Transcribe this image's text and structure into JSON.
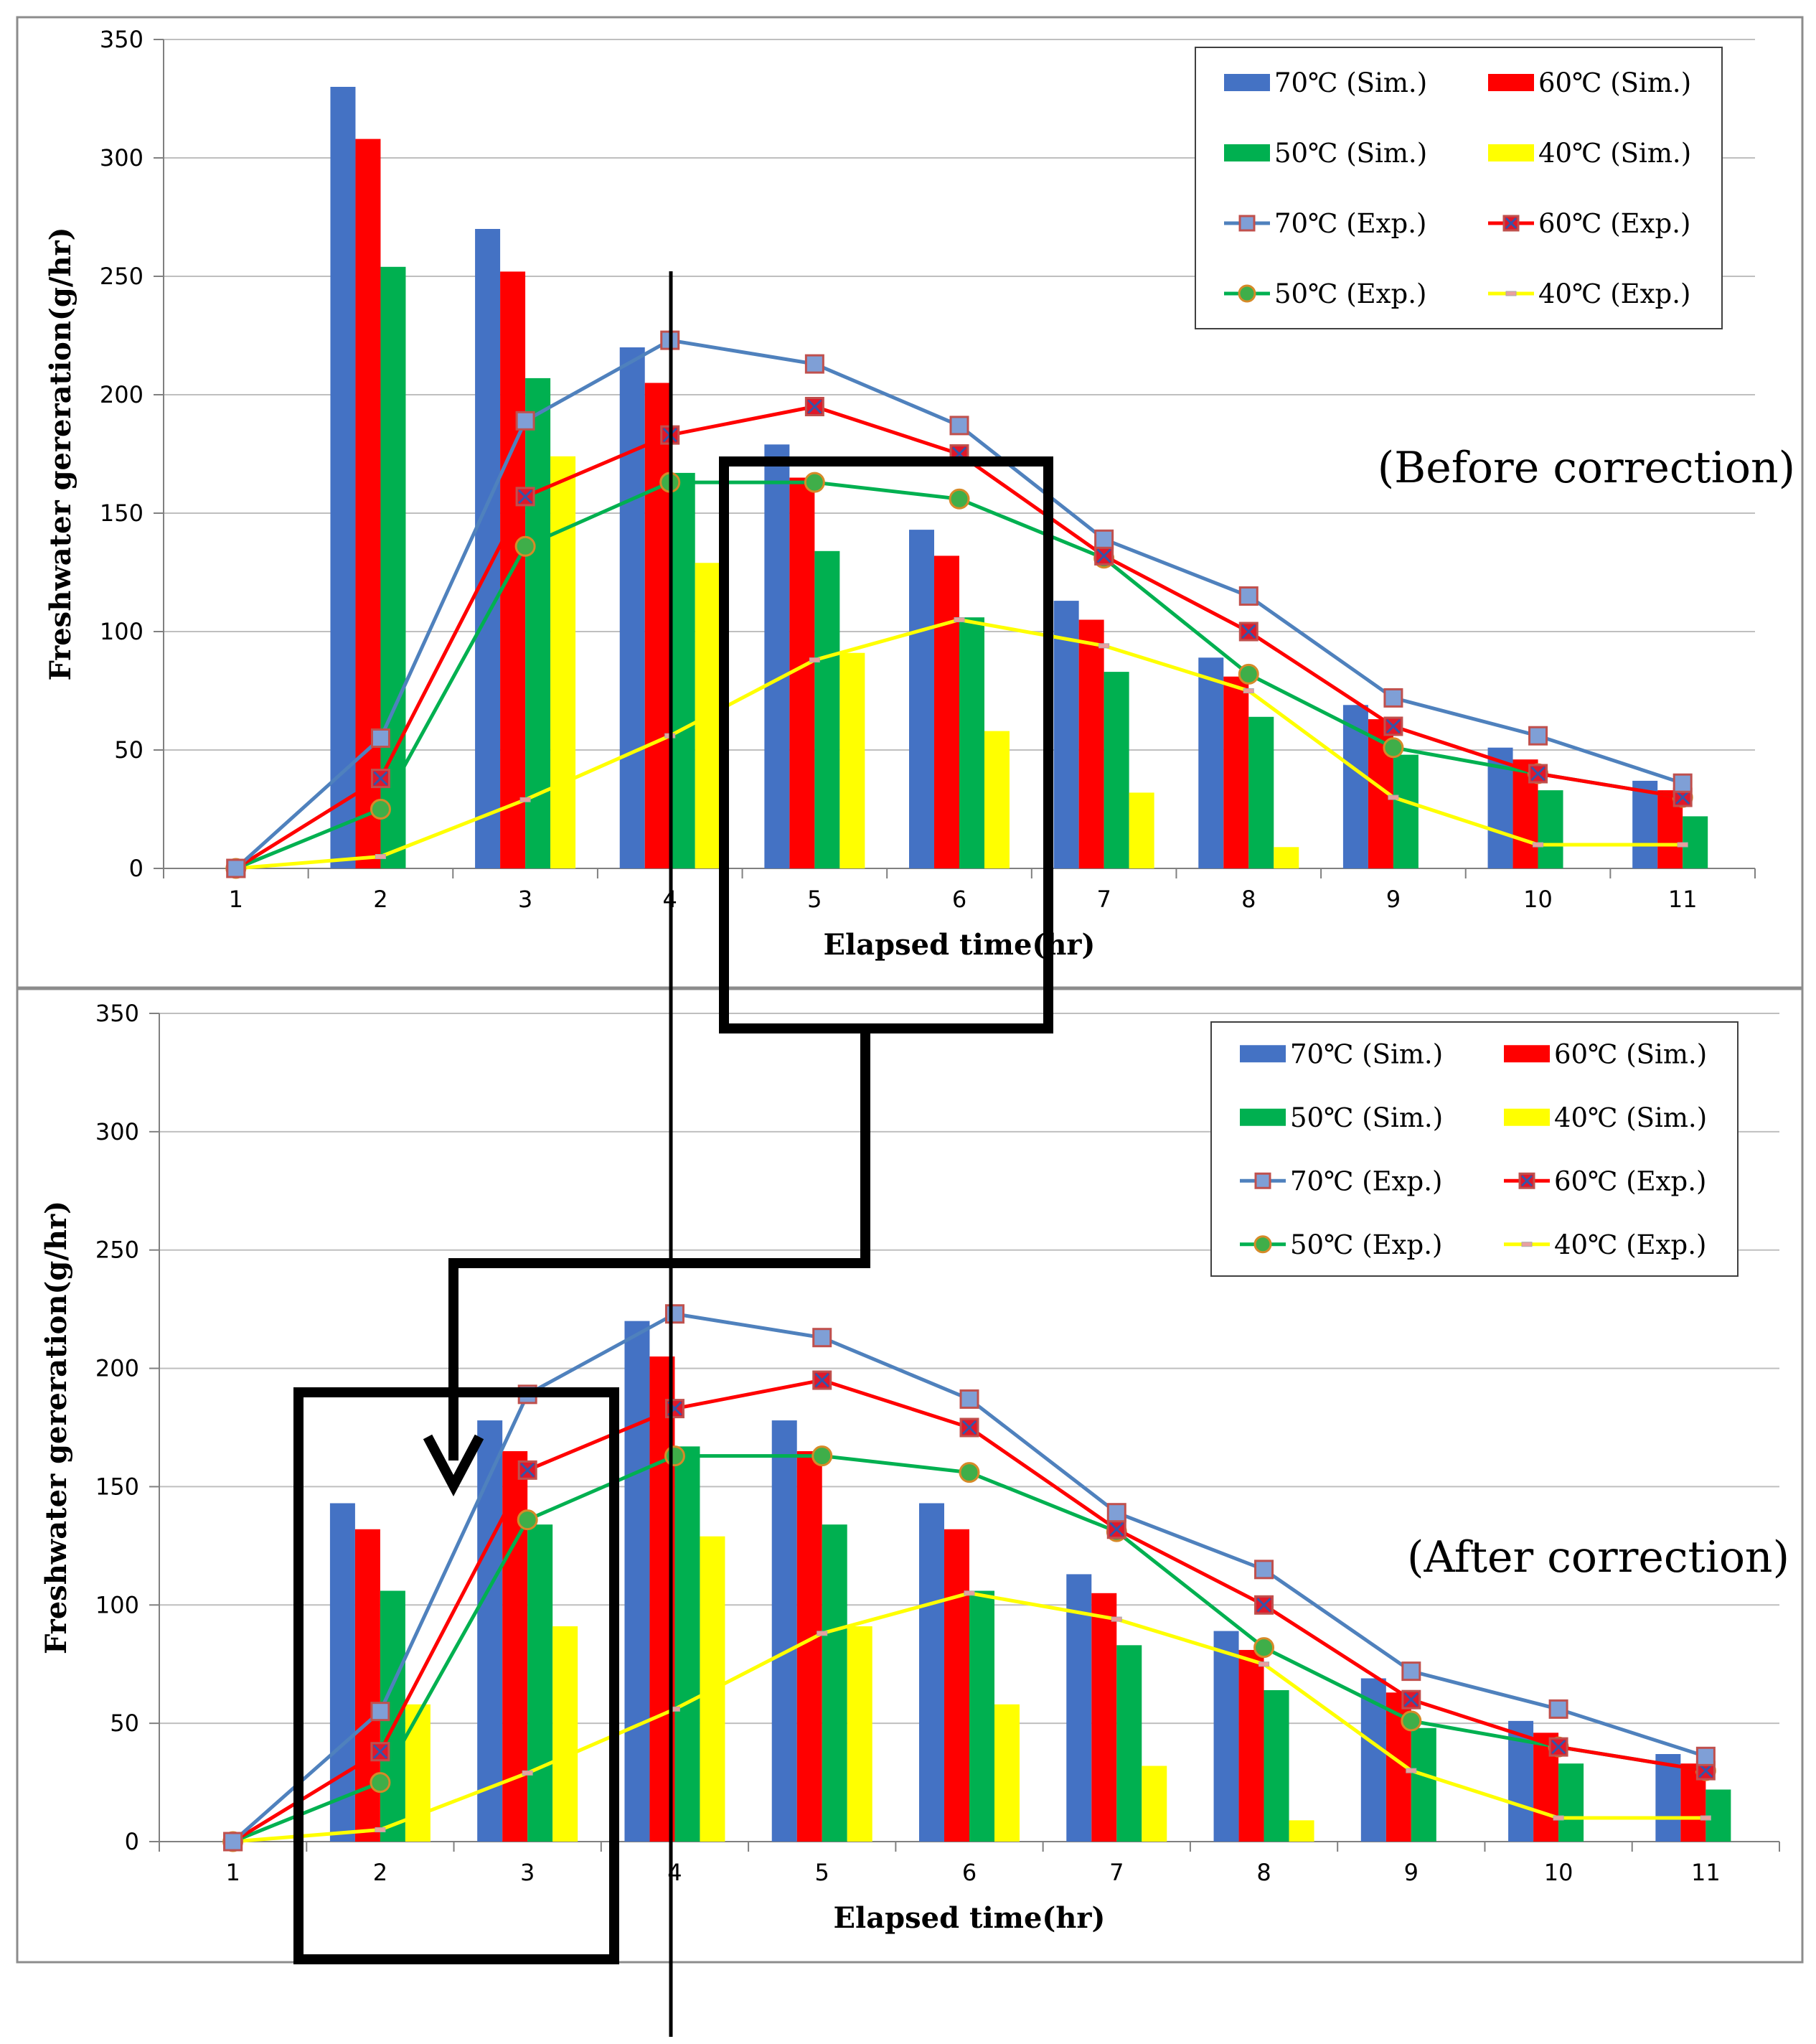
{
  "chart_data": [
    {
      "type": "bar",
      "annotation": "(Before correction)",
      "xlabel": "Elapsed time(hr)",
      "ylabel": "Freshwater gereration(g/hr)",
      "categories": [
        "1",
        "2",
        "3",
        "4",
        "5",
        "6",
        "7",
        "8",
        "9",
        "10",
        "11"
      ],
      "ylim": [
        0,
        350
      ],
      "yticks": [
        "0",
        "50",
        "100",
        "150",
        "200",
        "250",
        "300",
        "350"
      ],
      "grid": true,
      "legend_position": "top-right",
      "series": [
        {
          "name": "70℃ (Sim.)",
          "kind": "bar",
          "color": "#4472C4",
          "values": [
            0,
            330,
            270,
            220,
            179,
            143,
            113,
            89,
            69,
            51,
            37
          ]
        },
        {
          "name": "60℃ (Sim.)",
          "kind": "bar",
          "color": "#FF0000",
          "values": [
            0,
            308,
            252,
            205,
            165,
            132,
            105,
            81,
            63,
            46,
            33
          ]
        },
        {
          "name": "50℃ (Sim.)",
          "kind": "bar",
          "color": "#00B050",
          "values": [
            0,
            254,
            207,
            167,
            134,
            106,
            83,
            64,
            48,
            33,
            22
          ]
        },
        {
          "name": "40℃ (Sim.)",
          "kind": "bar",
          "color": "#FFFF00",
          "values": [
            0,
            0,
            174,
            129,
            91,
            58,
            32,
            9,
            0,
            0,
            0
          ]
        },
        {
          "name": "70℃ (Exp.)",
          "kind": "line",
          "marker": "square",
          "color": "#4F81BD",
          "values": [
            0,
            55,
            189,
            223,
            213,
            187,
            139,
            115,
            72,
            56,
            36
          ]
        },
        {
          "name": "60℃ (Exp.)",
          "kind": "line",
          "marker": "x-square",
          "color": "#FF0000",
          "values": [
            0,
            38,
            157,
            183,
            195,
            175,
            132,
            100,
            60,
            40,
            30
          ]
        },
        {
          "name": "50℃ (Exp.)",
          "kind": "line",
          "marker": "circle",
          "color": "#00B050",
          "values": [
            0,
            25,
            136,
            163,
            163,
            156,
            131,
            82,
            51,
            40,
            30
          ]
        },
        {
          "name": "40℃ (Exp.)",
          "kind": "line",
          "marker": "dash",
          "color": "#FFFF00",
          "values": [
            0,
            5,
            29,
            56,
            88,
            105,
            94,
            75,
            30,
            10,
            10
          ]
        }
      ]
    },
    {
      "type": "bar",
      "annotation": "(After correction)",
      "xlabel": "Elapsed time(hr)",
      "ylabel": "Freshwater gereration(g/hr)",
      "categories": [
        "1",
        "2",
        "3",
        "4",
        "5",
        "6",
        "7",
        "8",
        "9",
        "10",
        "11"
      ],
      "ylim": [
        0,
        350
      ],
      "yticks": [
        "0",
        "50",
        "100",
        "150",
        "200",
        "250",
        "300",
        "350"
      ],
      "grid": true,
      "legend_position": "top-right",
      "series": [
        {
          "name": "70℃ (Sim.)",
          "kind": "bar",
          "color": "#4472C4",
          "values": [
            0,
            143,
            178,
            220,
            178,
            143,
            113,
            89,
            69,
            51,
            37
          ]
        },
        {
          "name": "60℃ (Sim.)",
          "kind": "bar",
          "color": "#FF0000",
          "values": [
            0,
            132,
            165,
            205,
            165,
            132,
            105,
            81,
            63,
            46,
            33
          ]
        },
        {
          "name": "50℃ (Sim.)",
          "kind": "bar",
          "color": "#00B050",
          "values": [
            0,
            106,
            134,
            167,
            134,
            106,
            83,
            64,
            48,
            33,
            22
          ]
        },
        {
          "name": "40℃ (Sim.)",
          "kind": "bar",
          "color": "#FFFF00",
          "values": [
            0,
            58,
            91,
            129,
            91,
            58,
            32,
            9,
            0,
            0,
            0
          ]
        },
        {
          "name": "70℃ (Exp.)",
          "kind": "line",
          "marker": "square",
          "color": "#4F81BD",
          "values": [
            0,
            55,
            189,
            223,
            213,
            187,
            139,
            115,
            72,
            56,
            36
          ]
        },
        {
          "name": "60℃ (Exp.)",
          "kind": "line",
          "marker": "x-square",
          "color": "#FF0000",
          "values": [
            0,
            38,
            157,
            183,
            195,
            175,
            132,
            100,
            60,
            40,
            30
          ]
        },
        {
          "name": "50℃ (Exp.)",
          "kind": "line",
          "marker": "circle",
          "color": "#00B050",
          "values": [
            0,
            25,
            136,
            163,
            163,
            156,
            131,
            82,
            51,
            40,
            30
          ]
        },
        {
          "name": "40℃ (Exp.)",
          "kind": "line",
          "marker": "dash",
          "color": "#FFFF00",
          "values": [
            0,
            5,
            29,
            56,
            88,
            105,
            94,
            75,
            30,
            10,
            10
          ]
        }
      ]
    }
  ]
}
